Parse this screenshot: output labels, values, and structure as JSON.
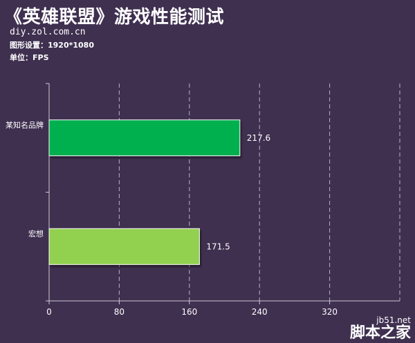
{
  "header": {
    "title": "《英雄联盟》游戏性能测试",
    "source": "diy.zol.com.cn",
    "setting": "图形设置：1920*1080",
    "unit": "单位：FPS"
  },
  "watermark": {
    "url": "jb51.net",
    "name": "脚本之家"
  },
  "colors": {
    "background": "#3f3050",
    "bar_series_1": "#00b050",
    "bar_series_2": "#92d050",
    "axis": "#d0c8d8",
    "text": "#ffffff"
  },
  "chart_data": {
    "type": "bar",
    "orientation": "horizontal",
    "categories": [
      "某知名品牌",
      "宏想"
    ],
    "values": [
      217.6,
      171.5
    ],
    "value_labels": [
      "217.6",
      "171.5"
    ],
    "bar_colors": [
      "#00b050",
      "#92d050"
    ],
    "xlim": [
      0,
      400
    ],
    "xticks": [
      0,
      80,
      160,
      240,
      320
    ],
    "xtick_labels": [
      "0",
      "80",
      "160",
      "240",
      "320"
    ],
    "grid": "vertical dashed",
    "legend": "none"
  }
}
